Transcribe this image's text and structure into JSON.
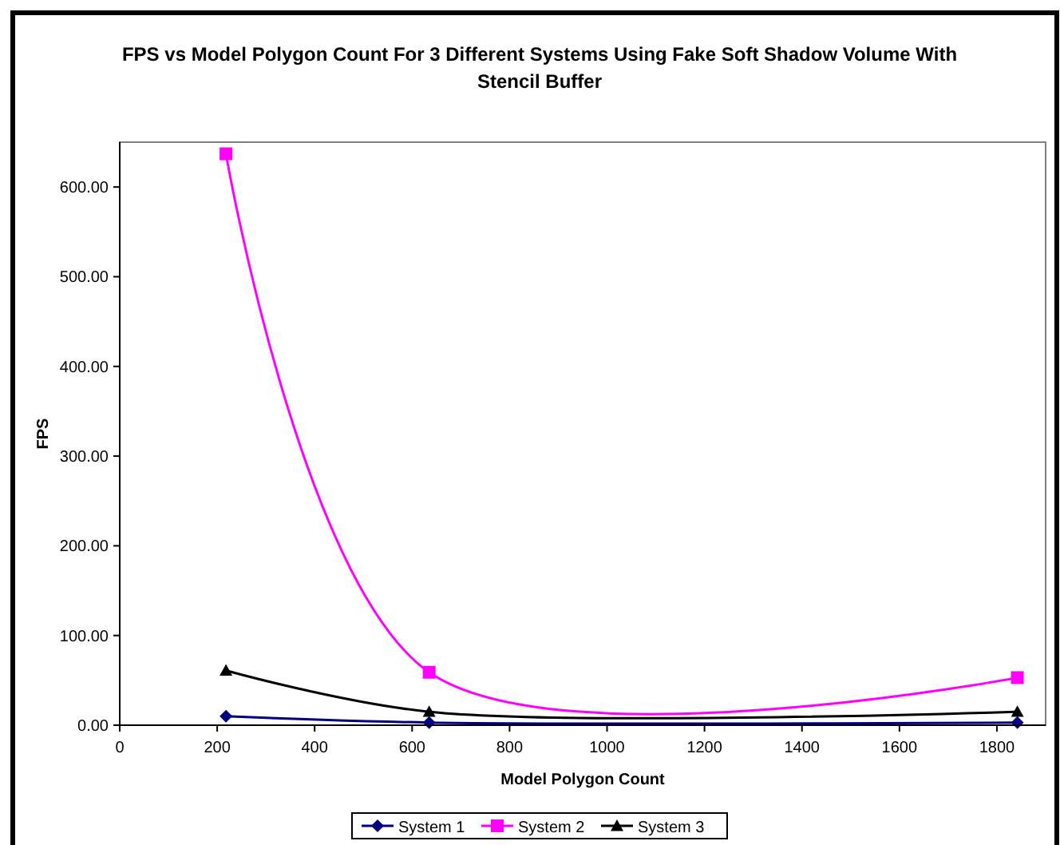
{
  "chart_data": {
    "type": "line",
    "title": "FPS vs Model Polygon Count For 3 Different Systems Using Fake Soft Shadow Volume With Stencil Buffer",
    "xlabel": "Model Polygon Count",
    "ylabel": "FPS",
    "x": [
      218,
      635,
      1842
    ],
    "xlim": [
      0,
      1900
    ],
    "xticks": [
      0,
      200,
      400,
      600,
      800,
      1000,
      1200,
      1400,
      1600,
      1800
    ],
    "ylim": [
      0,
      650
    ],
    "yticks": [
      {
        "value": 0,
        "label": "0.00"
      },
      {
        "value": 100,
        "label": "100.00"
      },
      {
        "value": 200,
        "label": "200.00"
      },
      {
        "value": 300,
        "label": "300.00"
      },
      {
        "value": 400,
        "label": "400.00"
      },
      {
        "value": 500,
        "label": "500.00"
      },
      {
        "value": 600,
        "label": "600.00"
      }
    ],
    "grid": false,
    "legend": "bottom",
    "line_style": "solid",
    "series": [
      {
        "name": "System 1",
        "color": "#000080",
        "marker": "diamond",
        "values": [
          10,
          3,
          3
        ]
      },
      {
        "name": "System 2",
        "color": "#ff00ff",
        "marker": "square",
        "values": [
          637,
          59,
          53
        ]
      },
      {
        "name": "System 3",
        "color": "#000000",
        "marker": "triangle",
        "values": [
          61,
          15,
          15
        ]
      }
    ]
  }
}
